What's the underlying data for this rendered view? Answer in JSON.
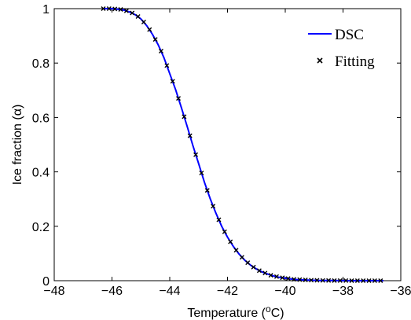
{
  "chart_data": {
    "type": "line",
    "title": "",
    "xlabel": "Temperature (",
    "xlabel_sup": "o",
    "xlabel_unit": "C)",
    "ylabel": "Ice fraction (",
    "ylabel_symbol": "α",
    "ylabel_close": ")",
    "xlim": [
      -48,
      -36
    ],
    "ylim": [
      0,
      1
    ],
    "xticks": [
      -48,
      -46,
      -44,
      -42,
      -40,
      -38,
      -36
    ],
    "xtick_labels": [
      "−48",
      "−46",
      "−44",
      "−42",
      "−40",
      "−38",
      "−36"
    ],
    "yticks": [
      0,
      0.2,
      0.4,
      0.6,
      0.8,
      1
    ],
    "ytick_labels": [
      "0",
      "0.2",
      "0.4",
      "0.6",
      "0.8",
      "1"
    ],
    "grid": false,
    "legend_position": "top-right",
    "series": [
      {
        "name": "DSC",
        "style": "line",
        "color": "#0000ff",
        "x": [
          -46.3,
          -46.0,
          -45.8,
          -45.6,
          -45.4,
          -45.2,
          -45.0,
          -44.8,
          -44.6,
          -44.4,
          -44.2,
          -44.0,
          -43.8,
          -43.6,
          -43.4,
          -43.2,
          -43.0,
          -42.8,
          -42.6,
          -42.4,
          -42.2,
          -42.0,
          -41.8,
          -41.6,
          -41.4,
          -41.2,
          -41.0,
          -40.8,
          -40.6,
          -40.4,
          -40.2,
          -40.0,
          -39.8,
          -39.6,
          -39.4,
          -39.2,
          -39.0,
          -38.8,
          -38.6,
          -38.4,
          -38.2,
          -38.0,
          -37.8,
          -37.6,
          -37.4,
          -37.2,
          -37.0,
          -36.8,
          -36.6
        ],
        "y": [
          1.0,
          1.0,
          0.998,
          0.995,
          0.988,
          0.978,
          0.962,
          0.938,
          0.906,
          0.867,
          0.82,
          0.761,
          0.703,
          0.637,
          0.568,
          0.497,
          0.43,
          0.362,
          0.302,
          0.248,
          0.2,
          0.16,
          0.126,
          0.098,
          0.075,
          0.057,
          0.043,
          0.032,
          0.024,
          0.017,
          0.012,
          0.009,
          0.006,
          0.004,
          0.003,
          0.002,
          0.0015,
          0.001,
          0.0007,
          0.0005,
          0.0003,
          0.0002,
          0.0001,
          0.0001,
          0.0,
          0.0,
          0.0,
          0.0,
          0.0
        ]
      },
      {
        "name": "Fitting",
        "style": "marker-x",
        "color": "#000000",
        "x": [
          -46.3,
          -46.1,
          -45.9,
          -45.7,
          -45.5,
          -45.3,
          -45.1,
          -44.9,
          -44.7,
          -44.5,
          -44.3,
          -44.1,
          -43.9,
          -43.7,
          -43.5,
          -43.3,
          -43.1,
          -42.9,
          -42.7,
          -42.5,
          -42.3,
          -42.1,
          -41.9,
          -41.7,
          -41.5,
          -41.3,
          -41.1,
          -40.9,
          -40.7,
          -40.5,
          -40.3,
          -40.1,
          -39.9,
          -39.7,
          -39.5,
          -39.3,
          -39.1,
          -38.9,
          -38.7,
          -38.5,
          -38.3,
          -38.1,
          -37.9,
          -37.7,
          -37.5,
          -37.3,
          -37.1,
          -36.9,
          -36.7
        ],
        "y": [
          1.0,
          1.0,
          0.999,
          0.997,
          0.992,
          0.984,
          0.971,
          0.951,
          0.923,
          0.887,
          0.844,
          0.791,
          0.733,
          0.67,
          0.603,
          0.533,
          0.463,
          0.396,
          0.332,
          0.274,
          0.224,
          0.18,
          0.143,
          0.112,
          0.086,
          0.066,
          0.05,
          0.037,
          0.028,
          0.02,
          0.015,
          0.011,
          0.008,
          0.005,
          0.004,
          0.003,
          0.002,
          0.0013,
          0.0009,
          0.0006,
          0.0004,
          0.0003,
          0.0002,
          0.0001,
          0.0001,
          0.0,
          0.0,
          0.0,
          0.0
        ]
      }
    ]
  }
}
